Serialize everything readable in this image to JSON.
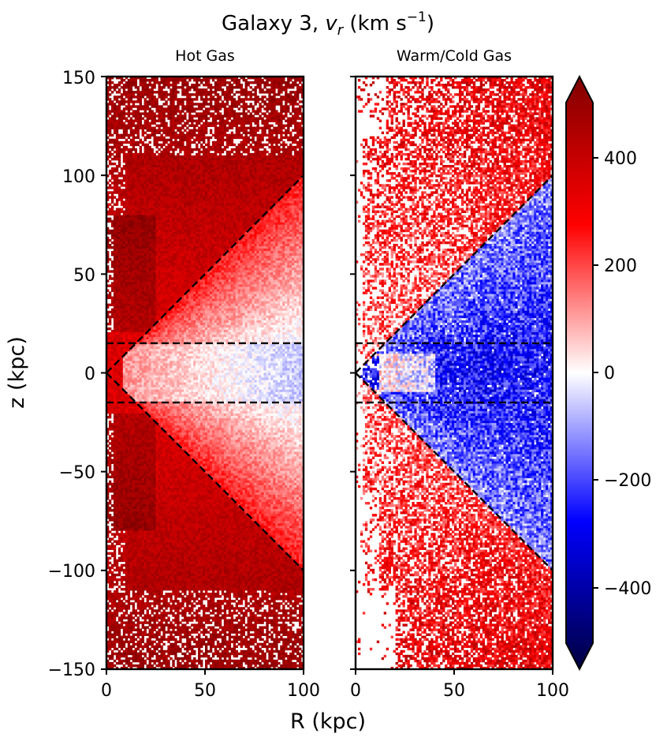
{
  "figure": {
    "title_prefix": "Galaxy 3, ",
    "title_var": "v",
    "title_sub": "r",
    "title_units": " (km s",
    "title_exp": "−1",
    "title_close": ")",
    "xlabel": "R (kpc)",
    "ylabel": "z (kpc)"
  },
  "colors": {
    "neg_extreme": "#000040",
    "neg_strong": "#0000ff",
    "zero": "#ffffff",
    "pos_strong": "#ff0000",
    "pos_extreme": "#800000",
    "guide_line": "#000000"
  },
  "chart_data": [
    {
      "type": "heatmap",
      "panel": "left",
      "title": "Hot Gas",
      "x_range": [
        0,
        100
      ],
      "y_range": [
        -150,
        150
      ],
      "x_ticks": [
        0,
        50,
        100
      ],
      "y_ticks": [
        -150,
        -100,
        -50,
        0,
        50,
        100,
        150
      ],
      "x_tick_labels": [
        "0",
        "50",
        "100"
      ],
      "y_tick_labels": [
        "−150",
        "−100",
        "−50",
        "0",
        "50",
        "100",
        "150"
      ],
      "value_summary": "Strong outflow (v_r ~ 300–500 km/s) at |z| > 50 kpc and along the cone axis; weak inflow (v_r ~ -50 to -100 km/s) near the midplane at R > 50 kpc",
      "guide_lines": [
        {
          "style": "dashed",
          "from": [
            0,
            0
          ],
          "to": [
            100,
            100
          ]
        },
        {
          "style": "dashed",
          "from": [
            0,
            0
          ],
          "to": [
            100,
            -100
          ]
        },
        {
          "style": "dashed",
          "from": [
            0,
            15
          ],
          "to": [
            100,
            15
          ]
        },
        {
          "style": "dashed",
          "from": [
            0,
            -15
          ],
          "to": [
            100,
            -15
          ]
        }
      ]
    },
    {
      "type": "heatmap",
      "panel": "right",
      "title": "Warm/Cold Gas",
      "x_range": [
        0,
        100
      ],
      "y_range": [
        -150,
        150
      ],
      "x_ticks": [
        0,
        50,
        100
      ],
      "x_tick_labels": [
        "0",
        "50",
        "100"
      ],
      "y_tick_labels_shown": false,
      "value_summary": "Inflow (v_r ~ -100 to -300 km/s) dominates near the midplane within the cone; patchy outflow (v_r ~ 100–400 km/s) at large |z|; many empty cells",
      "guide_lines": [
        {
          "style": "dashed",
          "from": [
            0,
            0
          ],
          "to": [
            100,
            100
          ]
        },
        {
          "style": "dashed",
          "from": [
            0,
            0
          ],
          "to": [
            100,
            -100
          ]
        },
        {
          "style": "dashed",
          "from": [
            0,
            15
          ],
          "to": [
            100,
            15
          ]
        },
        {
          "style": "dashed",
          "from": [
            0,
            -15
          ],
          "to": [
            100,
            -15
          ]
        }
      ]
    }
  ],
  "colorbar": {
    "cmap": "seismic",
    "range": [
      -500,
      500
    ],
    "extend": "both",
    "ticks": [
      -400,
      -200,
      0,
      200,
      400
    ],
    "tick_labels": [
      "−400",
      "−200",
      "0",
      "200",
      "400"
    ]
  }
}
